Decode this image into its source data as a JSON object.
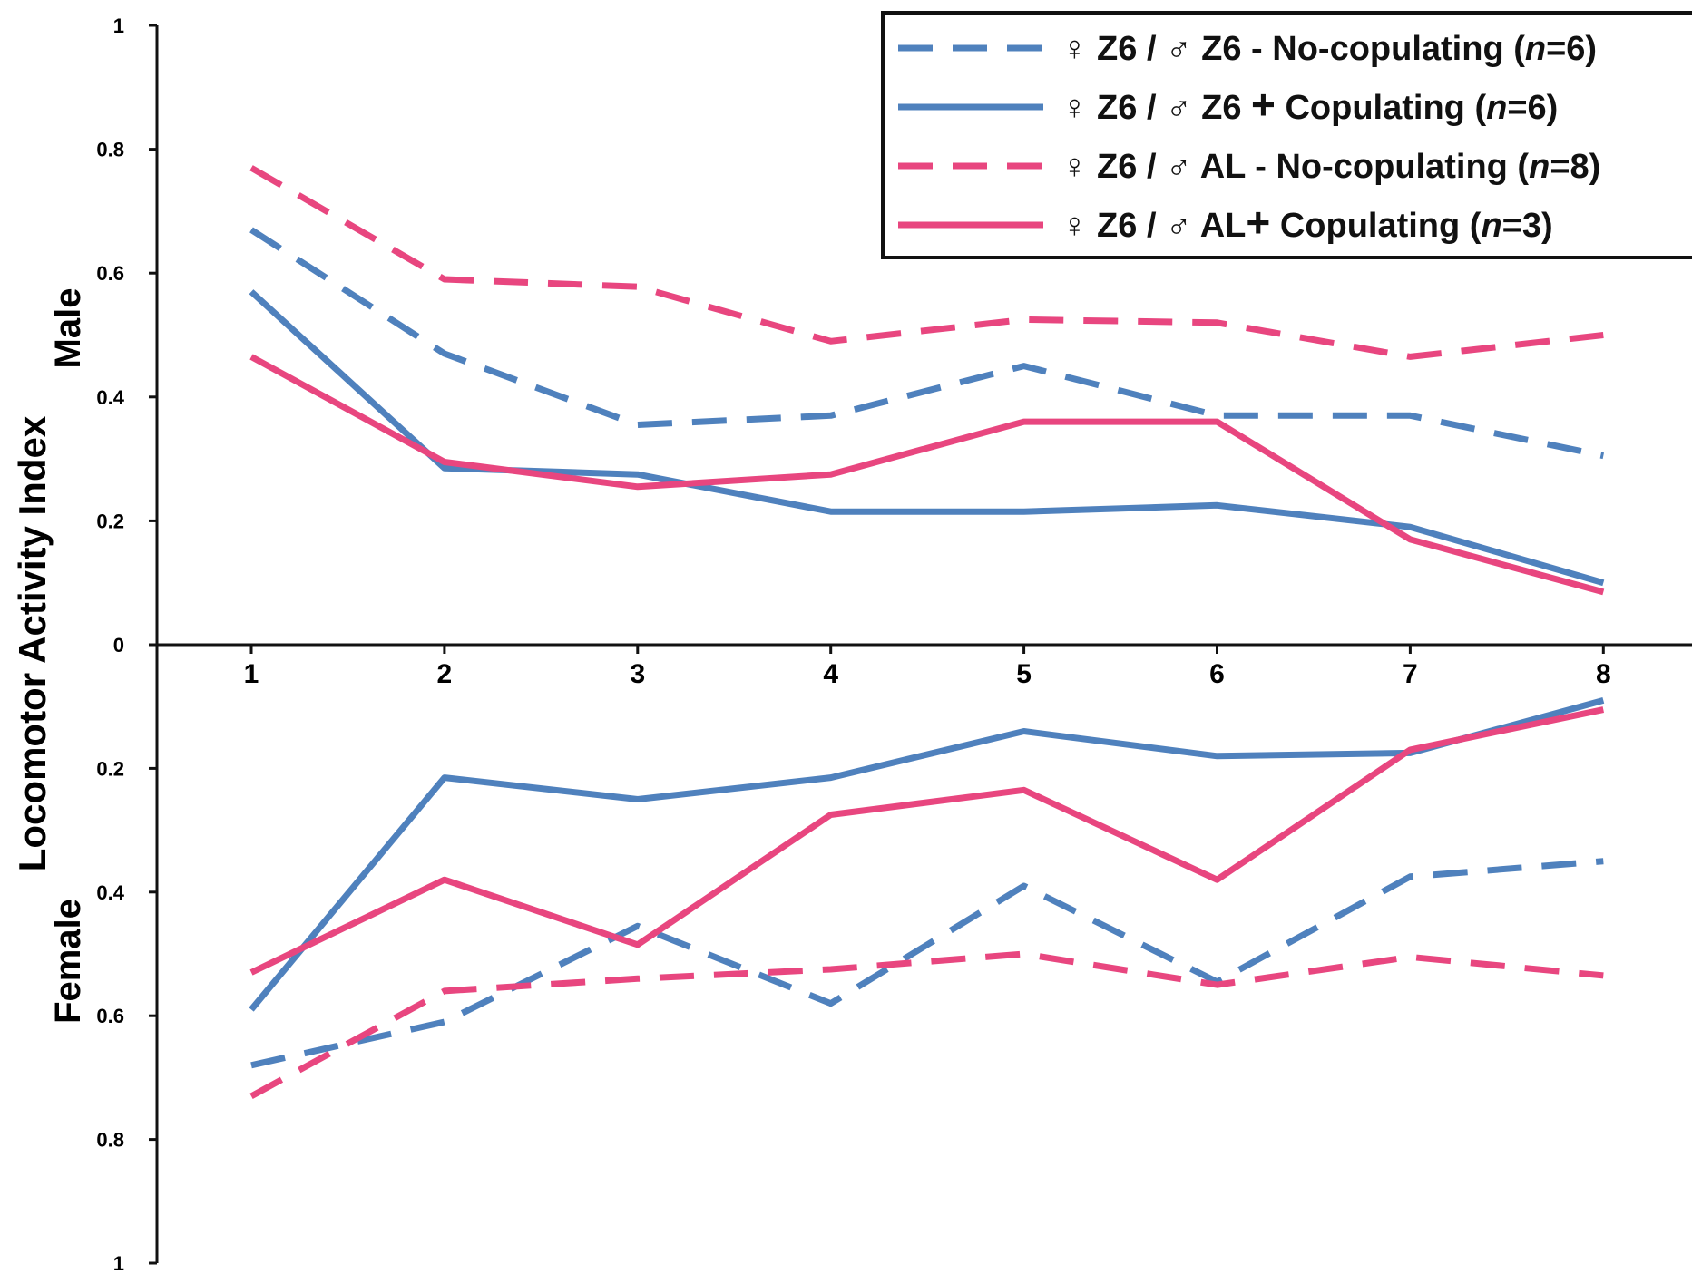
{
  "chart_data": {
    "type": "line",
    "ylabel": "Locomotor Activity Index",
    "panel_labels": {
      "top": "Male",
      "bottom": "Female"
    },
    "x": [
      1,
      2,
      3,
      4,
      5,
      6,
      7,
      8
    ],
    "x_tick_labels": [
      "1",
      "2",
      "3",
      "4",
      "5",
      "6",
      "7",
      "8"
    ],
    "y_ticks_male": [
      "1",
      "0.8",
      "0.6",
      "0.4",
      "0.2",
      "0"
    ],
    "y_ticks_female": [
      "0.2",
      "0.4",
      "0.6",
      "0.8",
      "1"
    ],
    "ylim": [
      0,
      1
    ],
    "grid": false,
    "legend_position": "top-right",
    "colors": {
      "blue": "#4f81bd",
      "pink": "#e8467f"
    },
    "legend": [
      {
        "label": "♀ Z6 / ♂ Z6 ",
        "sign": "-",
        "rest": " No-copulating (",
        "n_italic": "n",
        "count": "=6)"
      },
      {
        "label": "♀ Z6 / ♂ Z6 ",
        "sign": "+",
        "rest": " Copulating (",
        "n_italic": "n",
        "count": "=6)"
      },
      {
        "label": "♀ Z6 / ♂ AL ",
        "sign": "-",
        "rest": " No-copulating (",
        "n_italic": "n",
        "count": "=8)"
      },
      {
        "label": "♀ Z6 / ♂ AL",
        "sign": "+",
        "rest": " Copulating (",
        "n_italic": "n",
        "count": "=3)"
      }
    ],
    "series": [
      {
        "id": "z6z6-nocop",
        "color": "#4f81bd",
        "dash": true,
        "male": [
          0.67,
          0.47,
          0.355,
          0.37,
          0.45,
          0.37,
          0.37,
          0.305
        ],
        "female": [
          0.68,
          0.61,
          0.455,
          0.58,
          0.39,
          0.545,
          0.375,
          0.35
        ]
      },
      {
        "id": "z6z6-cop",
        "color": "#4f81bd",
        "dash": false,
        "male": [
          0.57,
          0.285,
          0.275,
          0.215,
          0.215,
          0.225,
          0.19,
          0.1
        ],
        "female": [
          0.59,
          0.215,
          0.25,
          0.215,
          0.14,
          0.18,
          0.175,
          0.09
        ]
      },
      {
        "id": "z6al-nocop",
        "color": "#e8467f",
        "dash": true,
        "male": [
          0.77,
          0.59,
          0.578,
          0.49,
          0.525,
          0.52,
          0.465,
          0.5
        ]
      },
      {
        "id": "z6al-cop",
        "color": "#e8467f",
        "dash": false,
        "male": [
          0.465,
          0.295,
          0.255,
          0.275,
          0.36,
          0.36,
          0.17,
          0.085
        ],
        "female": [
          0.53,
          0.38,
          0.485,
          0.275,
          0.235,
          0.38,
          0.17,
          0.105
        ]
      }
    ],
    "female_pink_dashed": [
      0.73,
      0.56,
      0.54,
      0.525,
      0.5,
      0.55,
      0.505,
      0.535
    ]
  }
}
